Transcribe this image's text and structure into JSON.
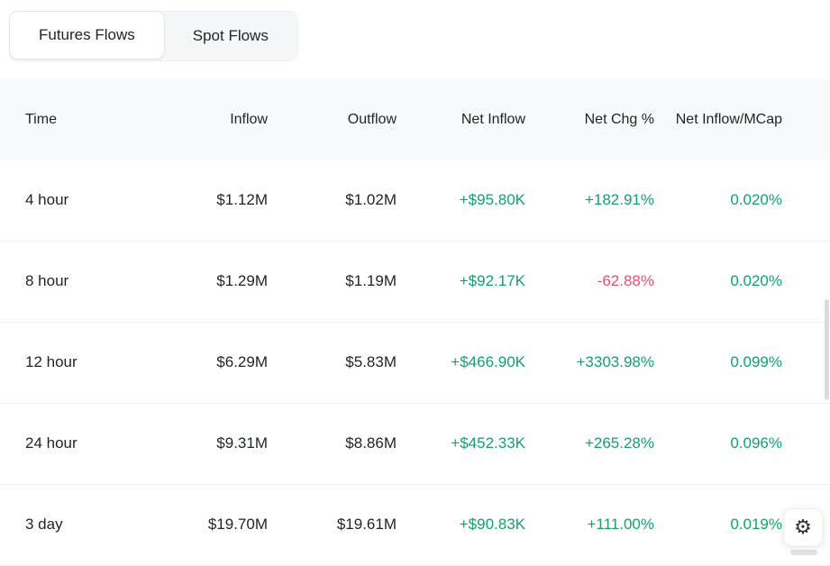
{
  "tabs": [
    {
      "label": "Futures Flows",
      "active": true
    },
    {
      "label": "Spot Flows",
      "active": false
    }
  ],
  "table": {
    "columns": [
      "Time",
      "Inflow",
      "Outflow",
      "Net Inflow",
      "Net Chg %",
      "Net Inflow/MCap"
    ],
    "rows": [
      {
        "time": "4 hour",
        "inflow": "$1.12M",
        "outflow": "$1.02M",
        "net_inflow": "+$95.80K",
        "net_chg": "+182.91%",
        "net_chg_tone": "pos",
        "net_inflow_mcap": "0.020%"
      },
      {
        "time": "8 hour",
        "inflow": "$1.29M",
        "outflow": "$1.19M",
        "net_inflow": "+$92.17K",
        "net_chg": "-62.88%",
        "net_chg_tone": "neg",
        "net_inflow_mcap": "0.020%"
      },
      {
        "time": "12 hour",
        "inflow": "$6.29M",
        "outflow": "$5.83M",
        "net_inflow": "+$466.90K",
        "net_chg": "+3303.98%",
        "net_chg_tone": "pos",
        "net_inflow_mcap": "0.099%"
      },
      {
        "time": "24 hour",
        "inflow": "$9.31M",
        "outflow": "$8.86M",
        "net_inflow": "+$452.33K",
        "net_chg": "+265.28%",
        "net_chg_tone": "pos",
        "net_inflow_mcap": "0.096%"
      },
      {
        "time": "3 day",
        "inflow": "$19.70M",
        "outflow": "$19.61M",
        "net_inflow": "+$90.83K",
        "net_chg": "+111.00%",
        "net_chg_tone": "pos",
        "net_inflow_mcap": "0.019%"
      }
    ]
  },
  "icons": {
    "settings": "gear-icon",
    "settings_glyph": "⚙"
  },
  "colors": {
    "positive": "#159f72",
    "negative": "#e7506a",
    "header_bg": "#f8f9fb",
    "text": "#1e2329"
  }
}
